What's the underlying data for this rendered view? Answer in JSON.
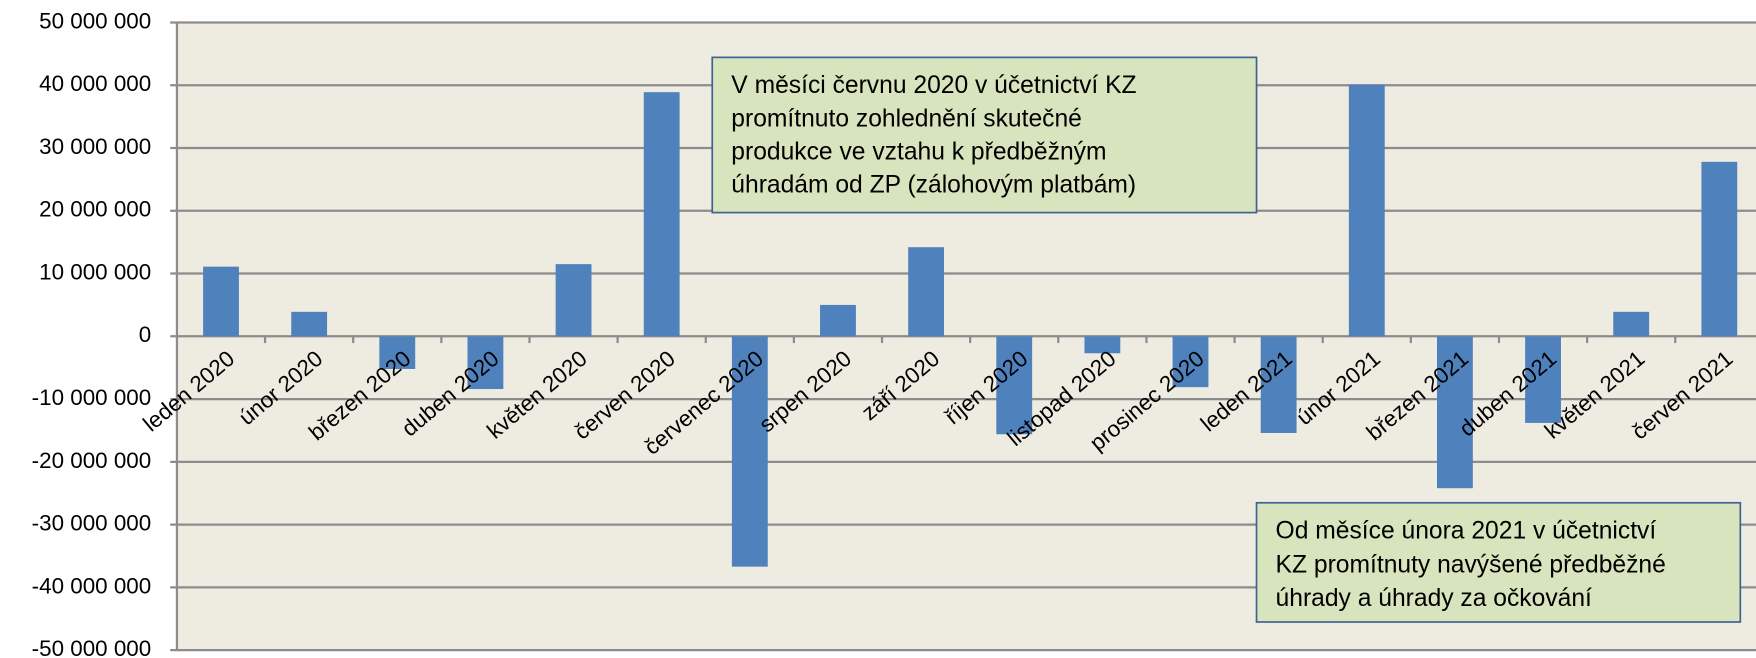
{
  "chart_data": {
    "type": "bar",
    "categories": [
      "leden 2020",
      "únor 2020",
      "březen 2020",
      "duben 2020",
      "květen 2020",
      "červen 2020",
      "červenec 2020",
      "srpen 2020",
      "září 2020",
      "říjen 2020",
      "listopad 2020",
      "prosinec 2020",
      "leden 2021",
      "únor 2021",
      "březen 2021",
      "duben 2021",
      "květen 2021",
      "červen 2021"
    ],
    "values": [
      11100000,
      3900000,
      -5200000,
      -8400000,
      11500000,
      38900000,
      -36700000,
      5000000,
      14200000,
      -15600000,
      -2700000,
      -8100000,
      -15400000,
      40100000,
      -24200000,
      -13800000,
      3900000,
      27800000
    ],
    "color": "#4f81bd",
    "ylim": [
      -50000000,
      50000000
    ],
    "yticks": [
      {
        "value": -50000000,
        "label": "-50 000 000"
      },
      {
        "value": -40000000,
        "label": "-40 000 000"
      },
      {
        "value": -30000000,
        "label": "-30 000 000"
      },
      {
        "value": -20000000,
        "label": "-20 000 000"
      },
      {
        "value": -10000000,
        "label": "-10 000 000"
      },
      0,
      {
        "value": 10000000,
        "label": "10 000 000"
      },
      {
        "value": 20000000,
        "label": "20 000 000"
      },
      {
        "value": 30000000,
        "label": "30 000 000"
      },
      {
        "value": 40000000,
        "label": "40 000 000"
      },
      {
        "value": 50000000,
        "label": "50 000 000"
      }
    ],
    "grid": true,
    "annotations": [
      {
        "lines": [
          "V měsíci červnu 2020 v účetnictví KZ",
          "promítnuto zohlednění skutečné",
          "produkce ve vztahu k předběžným",
          "úhradám od ZP (zálohovým platbám)"
        ]
      },
      {
        "lines": [
          "Od měsíce února 2021 v účetnictví",
          "KZ promítnuty navýšené předběžné",
          "úhrady a úhrady za očkování"
        ]
      }
    ]
  }
}
